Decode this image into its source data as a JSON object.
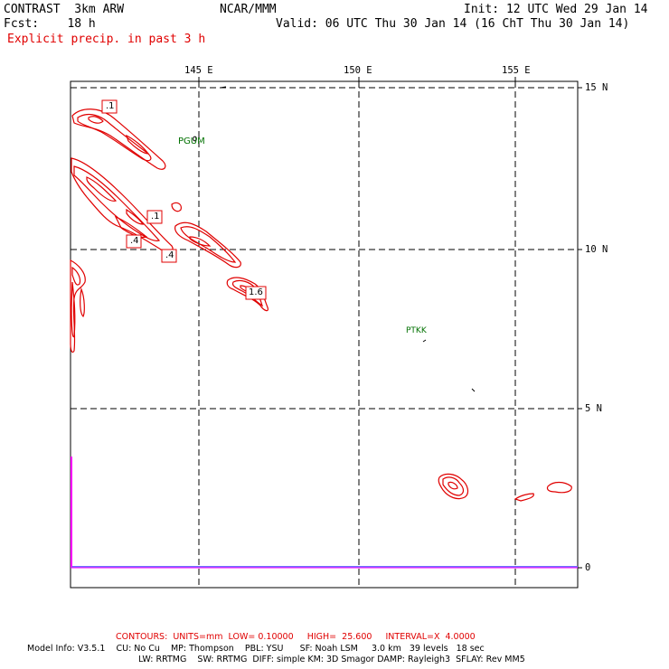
{
  "header": {
    "line1_left": "CONTRAST  3km ARW",
    "line1_center": "NCAR/MMM",
    "line1_right": "Init: 12 UTC Wed 29 Jan 14",
    "line2_left": "Fcst:    18 h",
    "line2_right": "Valid: 06 UTC Thu 30 Jan 14 (16 ChT Thu 30 Jan 14)",
    "field_title": "Explicit precip. in past 3 h"
  },
  "map": {
    "lon_labels": [
      "145 E",
      "150 E",
      "155 E"
    ],
    "lat_labels": [
      "15 N",
      "10 N",
      "5 N",
      "0"
    ],
    "stations": [
      "PGUM",
      "PTKK"
    ],
    "contour_labels": [
      ".1",
      ".1",
      ".4",
      ".4",
      "1.6"
    ],
    "colors": {
      "contour": "#e00000",
      "station": "#007000",
      "grid": "#000000",
      "boundary": "#ff00ff"
    }
  },
  "footer": {
    "contours": "CONTOURS:  UNITS=mm  LOW= 0.10000     HIGH=  25.600     INTERVAL=X  4.0000",
    "model_info": "Model Info: V3.5.1    CU: No Cu    MP: Thompson    PBL: YSU      SF: Noah LSM     3.0 km   39 levels   18 sec",
    "model_info2": "LW: RRTMG    SW: RRTMG  DIFF: simple KM: 3D Smagor DAMP: Rayleigh3  SFLAY: Rev MM5"
  }
}
